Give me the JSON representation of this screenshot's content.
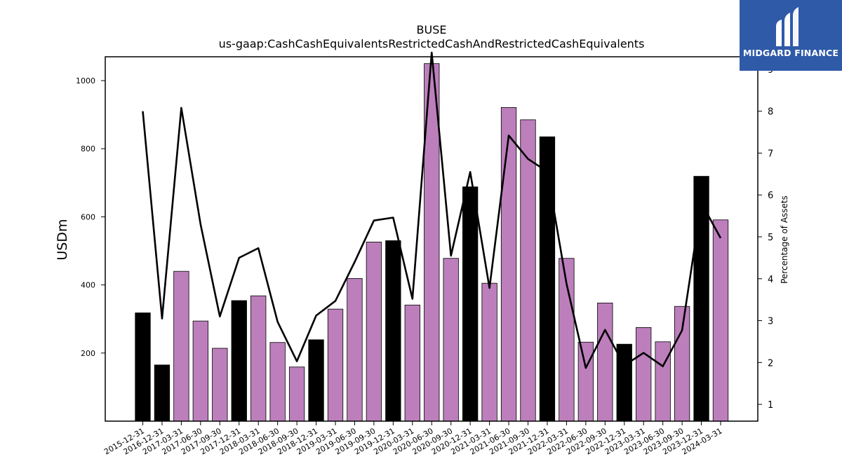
{
  "chart_data": {
    "type": "bar",
    "title": "BUSE",
    "subtitle": "us-gaap:CashCashEquivalentsRestrictedCashAndRestrictedCashEquivalents",
    "ylabel": "USDm",
    "y2label": "Percentage of Assets",
    "ylim": [
      0,
      1070
    ],
    "y2lim": [
      0.6,
      9.3
    ],
    "yticks": [
      200,
      400,
      600,
      800,
      1000
    ],
    "y2ticks": [
      1,
      2,
      3,
      4,
      5,
      6,
      7,
      8,
      9
    ],
    "grid": false,
    "categories": [
      "2015-12-31",
      "2016-12-31",
      "2017-03-31",
      "2017-06-30",
      "2017-09-30",
      "2017-12-31",
      "2018-03-31",
      "2018-06-30",
      "2018-09-30",
      "2018-12-31",
      "2019-03-31",
      "2019-06-30",
      "2019-09-30",
      "2019-12-31",
      "2020-03-31",
      "2020-06-30",
      "2020-09-30",
      "2020-12-31",
      "2021-03-31",
      "2021-06-30",
      "2021-09-30",
      "2021-12-31",
      "2022-03-31",
      "2022-06-30",
      "2022-09-30",
      "2022-12-31",
      "2023-03-31",
      "2023-06-30",
      "2023-09-30",
      "2023-12-31",
      "2024-03-31"
    ],
    "series": [
      {
        "type": "bar",
        "axis": "left",
        "values": [
          318,
          165,
          440,
          294,
          214,
          354,
          368,
          231,
          159,
          239,
          329,
          419,
          526,
          530,
          341,
          1050,
          478,
          688,
          405,
          921,
          885,
          835,
          478,
          232,
          347,
          226,
          275,
          233,
          337,
          719,
          591
        ],
        "year_end": [
          true,
          true,
          false,
          false,
          false,
          true,
          false,
          false,
          false,
          true,
          false,
          false,
          false,
          true,
          false,
          false,
          false,
          true,
          false,
          false,
          false,
          true,
          false,
          false,
          false,
          true,
          false,
          false,
          false,
          true,
          false
        ],
        "colors": {
          "year_end": "#000000",
          "quarter": "#bc7fbc"
        }
      },
      {
        "type": "line",
        "axis": "right",
        "color": "#000000",
        "values": [
          8.0,
          3.05,
          8.08,
          5.3,
          3.1,
          4.5,
          4.73,
          2.97,
          2.03,
          3.12,
          3.47,
          4.4,
          5.39,
          5.46,
          3.52,
          9.4,
          4.55,
          6.55,
          3.78,
          7.42,
          6.86,
          6.56,
          3.88,
          1.87,
          2.78,
          1.93,
          2.23,
          1.91,
          2.77,
          5.81,
          4.97
        ]
      }
    ]
  },
  "logo": {
    "text": "MIDGARD FINANCE",
    "background": "#2f5aa8"
  }
}
